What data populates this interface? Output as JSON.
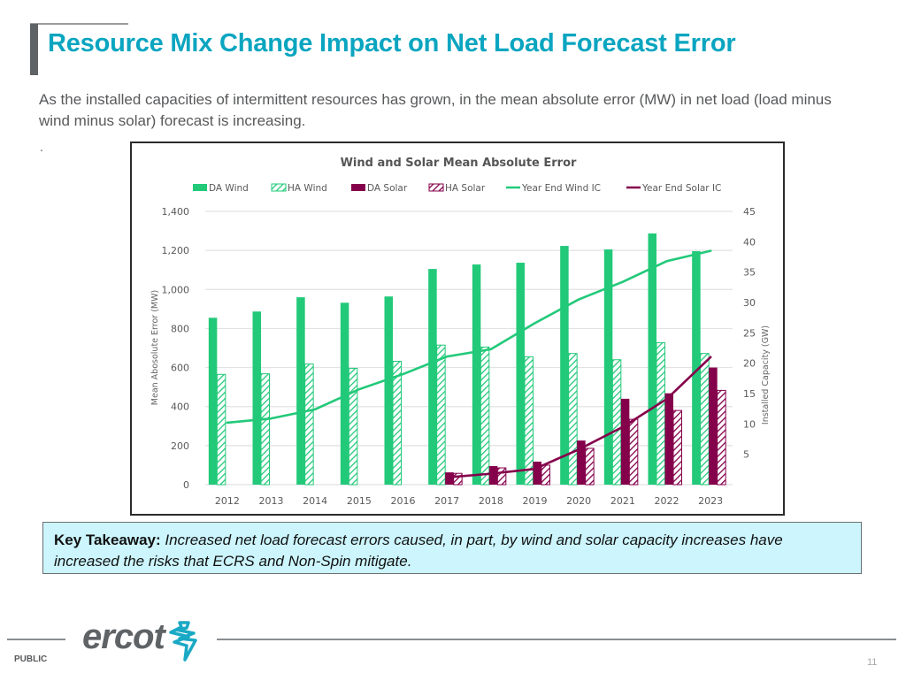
{
  "slide": {
    "title": "Resource Mix Change Impact on Net Load Forecast Error",
    "intro": "As the installed capacities of intermittent resources has grown, in the mean absolute error (MW) in net load (load minus wind minus solar) forecast is increasing.",
    "stray_mark": ".",
    "takeaway_label": "Key Takeaway:",
    "takeaway_text": " Increased net load forecast errors caused, in part, by wind and solar capacity increases have increased the risks that ECRS and Non-Spin mitigate.",
    "footer_classification": "PUBLIC",
    "page_number": "11",
    "logo_text": "ercot"
  },
  "colors": {
    "title": "#0aa5c0",
    "wind": "#22c979",
    "solar": "#85004b",
    "takeaway_bg": "#ccf5fd"
  },
  "chart_data": {
    "type": "bar",
    "title": "Wind and Solar Mean Absolute Error",
    "xlabel": "",
    "ylabel": "Mean Abosolute Error (MW)",
    "y2label": "Installed Capacity (GW)",
    "ylim": [
      0,
      1400
    ],
    "y2lim": [
      0,
      45
    ],
    "yticks": [
      "0",
      "200",
      "400",
      "600",
      "800",
      "1,000",
      "1,200",
      "1,400"
    ],
    "y2ticks": [
      "5",
      "10",
      "15",
      "20",
      "25",
      "30",
      "35",
      "40",
      "45"
    ],
    "grid": true,
    "legend_position": "top",
    "categories": [
      "2012",
      "2013",
      "2014",
      "2015",
      "2016",
      "2017",
      "2018",
      "2019",
      "2020",
      "2021",
      "2022",
      "2023"
    ],
    "series": [
      {
        "name": "DA Wind",
        "kind": "bar",
        "style": "solid",
        "color": "#22c979",
        "axis": "left",
        "values": [
          855,
          887,
          960,
          932,
          964,
          1105,
          1128,
          1137,
          1223,
          1205,
          1287,
          1196
        ]
      },
      {
        "name": "HA Wind",
        "kind": "bar",
        "style": "hatch",
        "color": "#22c979",
        "axis": "left",
        "values": [
          565,
          568,
          618,
          596,
          632,
          715,
          705,
          655,
          672,
          640,
          727,
          672
        ]
      },
      {
        "name": "DA Solar",
        "kind": "bar",
        "style": "solid",
        "color": "#85004b",
        "axis": "left",
        "values": [
          null,
          null,
          null,
          null,
          null,
          63,
          95,
          118,
          226,
          440,
          468,
          600
        ]
      },
      {
        "name": "HA Solar",
        "kind": "bar",
        "style": "hatch",
        "color": "#85004b",
        "axis": "left",
        "values": [
          null,
          null,
          null,
          null,
          null,
          58,
          86,
          100,
          186,
          335,
          380,
          483
        ]
      },
      {
        "name": "Year End Wind IC",
        "kind": "line",
        "color": "#22c979",
        "axis": "right",
        "values": [
          10.2,
          10.9,
          12.4,
          15.7,
          18.2,
          21.1,
          22.3,
          26.6,
          30.5,
          33.4,
          36.8,
          38.5
        ]
      },
      {
        "name": "Year End Solar IC",
        "kind": "line",
        "color": "#85004b",
        "axis": "right",
        "values": [
          null,
          null,
          null,
          null,
          null,
          1.2,
          1.8,
          2.6,
          5.8,
          9.5,
          14.1,
          21.0
        ]
      }
    ]
  }
}
